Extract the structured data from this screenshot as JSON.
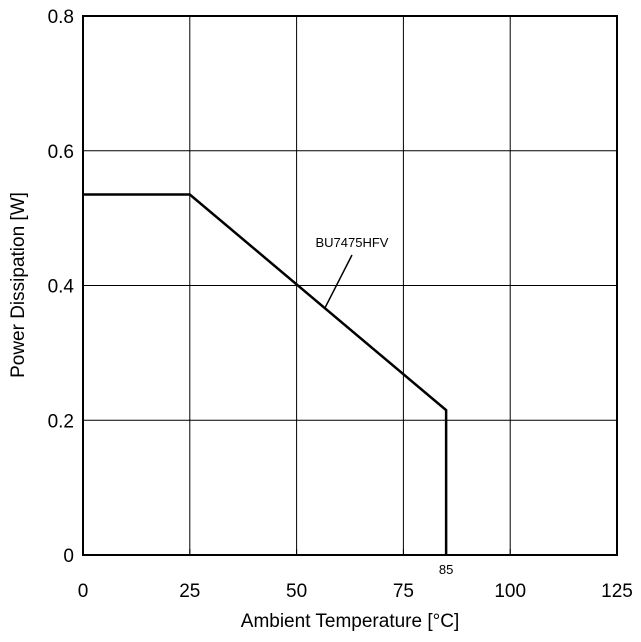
{
  "chart_data": {
    "type": "line",
    "title": "",
    "xlabel": "Ambient Temperature [°C]",
    "ylabel": "Power Dissipation [W]",
    "xlim": [
      0,
      125
    ],
    "ylim": [
      0,
      0.8
    ],
    "x_ticks": [
      0,
      25,
      50,
      75,
      100,
      125
    ],
    "x_tick_labels": [
      "0",
      "25",
      "50",
      "75",
      "100",
      "125"
    ],
    "y_ticks": [
      0,
      0.2,
      0.4,
      0.6,
      0.8
    ],
    "y_tick_labels": [
      "0",
      "0.2",
      "0.4",
      "0.6",
      "0.8"
    ],
    "grid": true,
    "series": [
      {
        "name": "BU7475HFV",
        "x": [
          0,
          25,
          85,
          85
        ],
        "y": [
          0.535,
          0.535,
          0.215,
          0
        ]
      }
    ],
    "annotations": [
      {
        "text": "BU7475HFV",
        "target_x": 56.5,
        "target_y": 0.365
      },
      {
        "text": "85",
        "x": 85,
        "y": 0
      }
    ],
    "colors": {
      "line": "#000000",
      "grid": "#000000",
      "background": "#ffffff"
    }
  }
}
